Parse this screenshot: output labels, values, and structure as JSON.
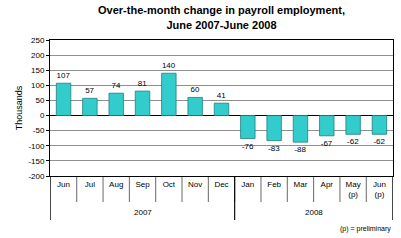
{
  "chart_data": {
    "type": "bar",
    "title": "Over-the-month change in payroll employment,\nJune 2007-June 2008",
    "y_label": "Thousands",
    "categories": [
      "Jun",
      "Jul",
      "Aug",
      "Sep",
      "Oct",
      "Nov",
      "Dec",
      "Jan",
      "Feb",
      "Mar",
      "Apr",
      "May\n(p)",
      "Jun\n(p)"
    ],
    "values": [
      107,
      57,
      74,
      81,
      140,
      60,
      41,
      -76,
      -83,
      -88,
      -67,
      -62,
      -62
    ],
    "color": "#33cccc",
    "data_labels": true,
    "ylim": [
      -200,
      250
    ],
    "yticks": [
      -200,
      -150,
      -100,
      -50,
      0,
      50,
      100,
      150,
      200,
      250
    ],
    "grid": true,
    "groups": [
      {
        "label": "2007",
        "first": 0,
        "last": 6
      },
      {
        "label": "2008",
        "first": 7,
        "last": 12
      }
    ],
    "note": "(p) = preliminary"
  }
}
